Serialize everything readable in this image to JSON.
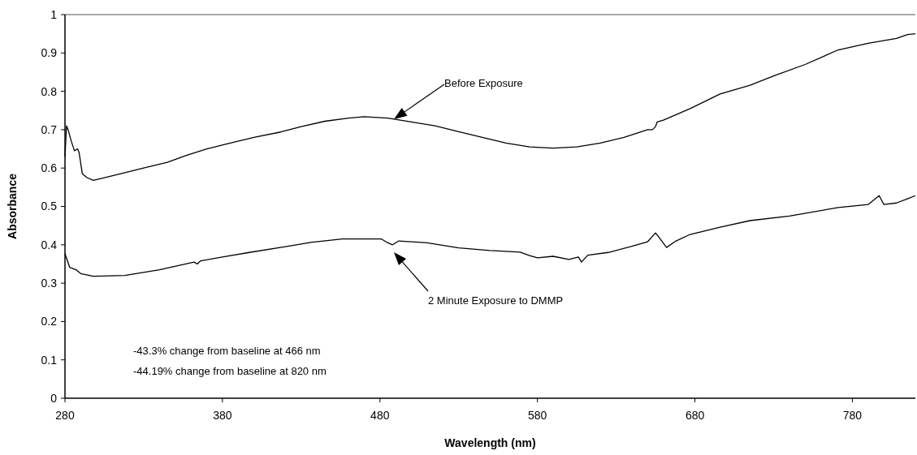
{
  "chart_data": {
    "type": "line",
    "xlabel": "Wavelength (nm)",
    "ylabel": "Absorbance",
    "xlim": [
      280,
      820
    ],
    "xticks": [
      280,
      380,
      480,
      580,
      680,
      780
    ],
    "ylim": [
      0,
      1
    ],
    "yticks": [
      0,
      0.1,
      0.2,
      0.3,
      0.4,
      0.5,
      0.6,
      0.7,
      0.8,
      0.9,
      1
    ],
    "grid": false,
    "marker": "none",
    "line_style": "solid",
    "series": [
      {
        "color": "#000000",
        "x": [
          280,
          281,
          282,
          284,
          286,
          288,
          289,
          291,
          294,
          298,
          305,
          315,
          330,
          345,
          357,
          370,
          385,
          400,
          417,
          430,
          445,
          460,
          470,
          485,
          500,
          515,
          530,
          545,
          560,
          575,
          590,
          605,
          620,
          635,
          650,
          653,
          655,
          656,
          660,
          677,
          696,
          715,
          730,
          750,
          771,
          790,
          808,
          815,
          820
        ],
        "values": [
          0.63,
          0.71,
          0.7,
          0.67,
          0.645,
          0.65,
          0.64,
          0.585,
          0.575,
          0.568,
          0.575,
          0.585,
          0.6,
          0.615,
          0.633,
          0.65,
          0.665,
          0.68,
          0.694,
          0.708,
          0.722,
          0.73,
          0.734,
          0.73,
          0.72,
          0.71,
          0.695,
          0.68,
          0.665,
          0.655,
          0.652,
          0.655,
          0.665,
          0.68,
          0.7,
          0.7,
          0.708,
          0.72,
          0.725,
          0.755,
          0.793,
          0.816,
          0.84,
          0.87,
          0.908,
          0.925,
          0.938,
          0.948,
          0.95
        ]
      },
      {
        "color": "#000000",
        "x": [
          280,
          283,
          287,
          290,
          298,
          318,
          340,
          362,
          364,
          366,
          380,
          397,
          420,
          436,
          456,
          481,
          485,
          488,
          492,
          510,
          530,
          550,
          569,
          575,
          580,
          590,
          600,
          606,
          608,
          612,
          625,
          640,
          650,
          655,
          658,
          662,
          668,
          677,
          696,
          715,
          740,
          771,
          790,
          797,
          800,
          808,
          815,
          820
        ],
        "values": [
          0.377,
          0.341,
          0.335,
          0.325,
          0.318,
          0.32,
          0.335,
          0.355,
          0.35,
          0.358,
          0.368,
          0.38,
          0.395,
          0.406,
          0.415,
          0.415,
          0.405,
          0.4,
          0.41,
          0.405,
          0.392,
          0.385,
          0.381,
          0.372,
          0.366,
          0.37,
          0.362,
          0.368,
          0.355,
          0.373,
          0.38,
          0.396,
          0.408,
          0.431,
          0.415,
          0.393,
          0.41,
          0.427,
          0.446,
          0.463,
          0.475,
          0.497,
          0.505,
          0.528,
          0.505,
          0.509,
          0.52,
          0.528
        ]
      }
    ],
    "annotations": [
      "Before Exposure",
      "2 Minute Exposure to DMMP",
      "-43.3% change from baseline at 466 nm",
      "-44.19% change from baseline at 820 nm"
    ]
  }
}
